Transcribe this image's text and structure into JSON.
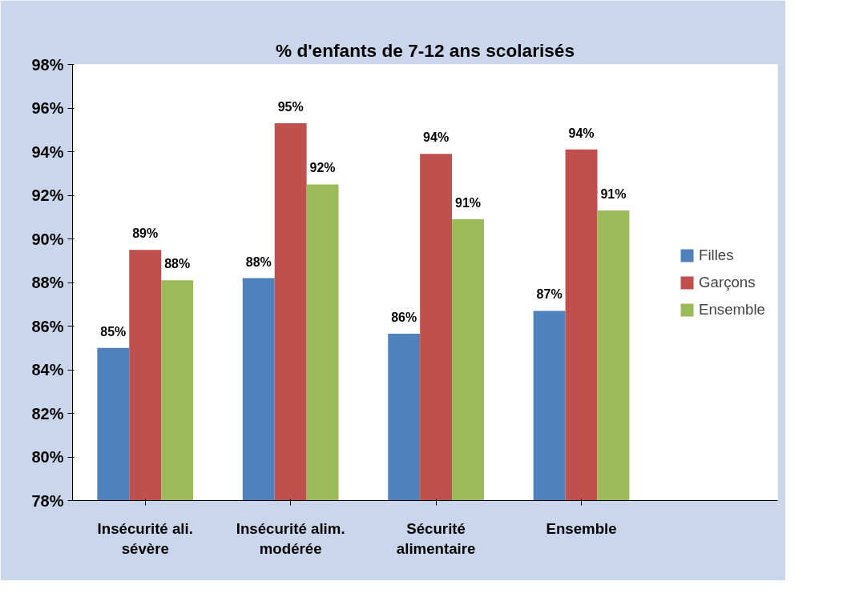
{
  "chart_data": {
    "type": "bar",
    "title": "% d'enfants de 7-12 ans scolarisés",
    "categories": [
      "Insécurité ali. sévère",
      "Insécurité alim. modérée",
      "Sécurité alimentaire",
      "Ensemble"
    ],
    "series": [
      {
        "name": "Filles",
        "color": "#4f81bd",
        "values": [
          85.0,
          88.2,
          85.65,
          86.7
        ],
        "value_labels": [
          "85%",
          "88%",
          "86%",
          "87%"
        ]
      },
      {
        "name": "Garçons",
        "color": "#c0504d",
        "values": [
          89.5,
          95.3,
          93.9,
          94.1
        ],
        "value_labels": [
          "89%",
          "95%",
          "94%",
          "94%"
        ]
      },
      {
        "name": "Ensemble",
        "color": "#9bbb59",
        "values": [
          88.1,
          92.5,
          90.9,
          91.3
        ],
        "value_labels": [
          "88%",
          "92%",
          "91%",
          "91%"
        ]
      }
    ],
    "ylim": [
      78,
      98
    ],
    "yticks": [
      {
        "value": 78,
        "label": "78%"
      },
      {
        "value": 80,
        "label": "80%"
      },
      {
        "value": 82,
        "label": "82%"
      },
      {
        "value": 84,
        "label": "84%"
      },
      {
        "value": 86,
        "label": "86%"
      },
      {
        "value": 88,
        "label": "88%"
      },
      {
        "value": 90,
        "label": "90%"
      },
      {
        "value": 92,
        "label": "92%"
      },
      {
        "value": 94,
        "label": "94%"
      },
      {
        "value": 96,
        "label": "96%"
      },
      {
        "value": 98,
        "label": "98%"
      }
    ],
    "grid": false,
    "legend": "right"
  }
}
